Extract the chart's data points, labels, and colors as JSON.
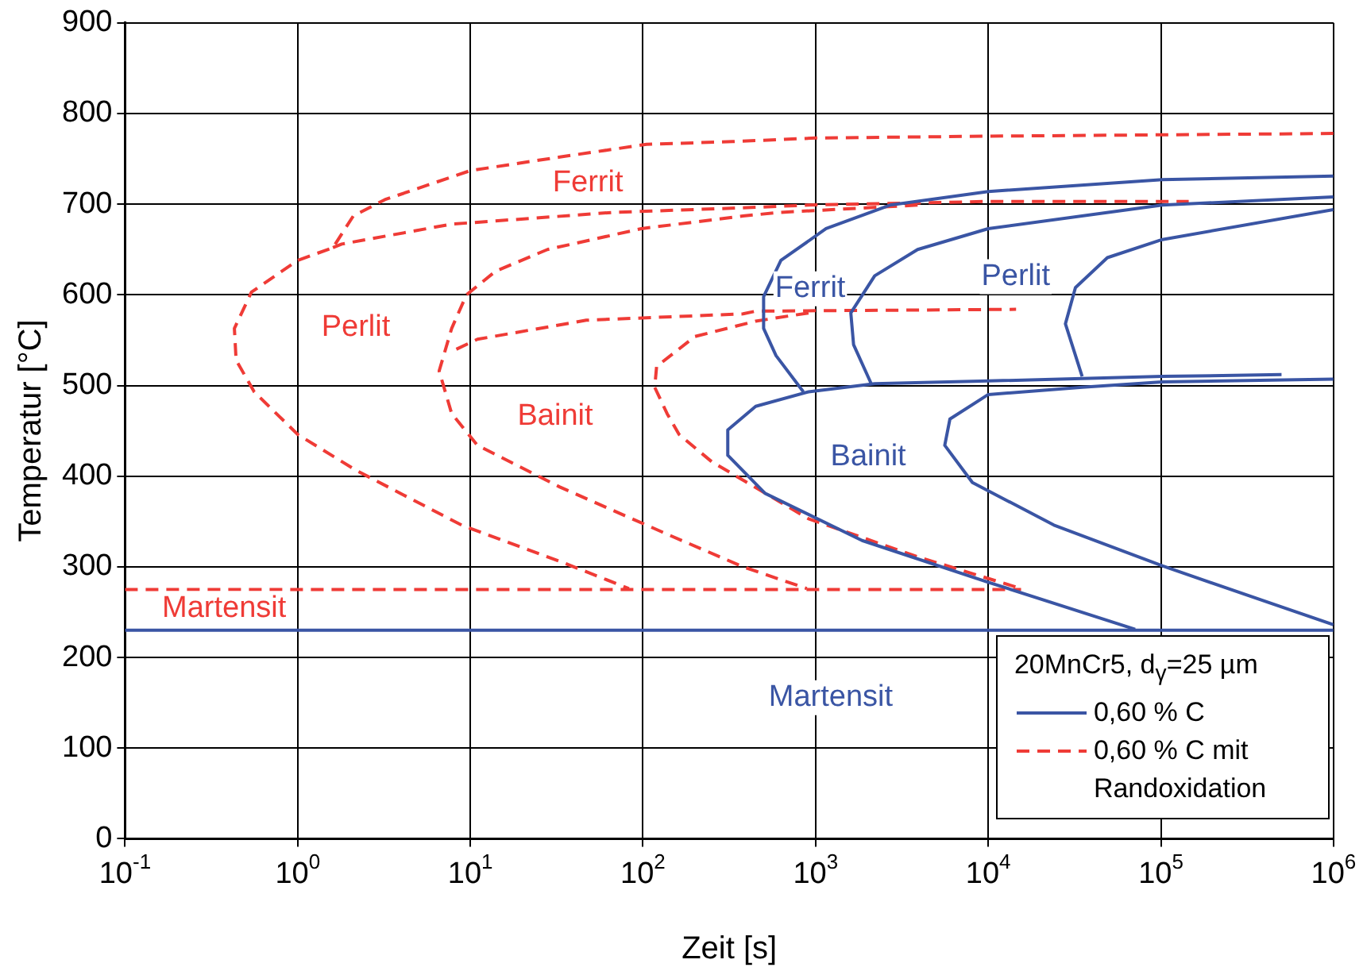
{
  "chart_data": {
    "type": "line",
    "xlabel": "Zeit [s]",
    "ylabel": "Temperatur [°C]",
    "legend_title": "20MnCr5, d$_{γ}$=25 µm",
    "legend": "bottom right",
    "grid": true,
    "log": "x",
    "xlim": [
      0.1,
      1000000
    ],
    "xticks": [
      {
        "value": 0.1,
        "label": "10$^{-1}$"
      },
      {
        "value": 1,
        "label": "10$^{0}$"
      },
      {
        "value": 10,
        "label": "10$^{1}$"
      },
      {
        "value": 100,
        "label": "10$^{2}$"
      },
      {
        "value": 1000,
        "label": "10$^{3}$"
      },
      {
        "value": 10000,
        "label": "10$^{4}$"
      },
      {
        "value": 100000,
        "label": "10$^{5}$"
      },
      {
        "value": 1000000,
        "label": "10$^{6}$"
      }
    ],
    "ylim": [
      0,
      900
    ],
    "yticks": [
      0,
      100,
      200,
      300,
      400,
      500,
      600,
      700,
      800,
      900
    ],
    "series": [
      {
        "name": "0,60 % C",
        "color": "#3a55a4",
        "line_style": "solid",
        "x": [
          1000000,
          102000,
          10000,
          2700,
          1150,
          630,
          500,
          500,
          590,
          850
        ],
        "values": [
          731,
          727,
          714,
          699,
          673,
          638,
          598,
          563,
          533,
          493
        ]
      },
      {
        "color": "#3a55a4",
        "line_style": "solid",
        "x": [
          1000000,
          102000,
          10000,
          3900,
          2200,
          1600,
          1660,
          2100
        ],
        "values": [
          708,
          699,
          673,
          650,
          621,
          580,
          545,
          502
        ]
      },
      {
        "color": "#3a55a4",
        "line_style": "solid",
        "x": [
          1000000,
          102000,
          49000,
          32000,
          28000,
          35000
        ],
        "values": [
          694,
          661,
          641,
          608,
          568,
          510
        ]
      },
      {
        "color": "#3a55a4",
        "line_style": "solid",
        "x": [
          500000,
          102000,
          10000,
          2200,
          910,
          450,
          310,
          310,
          510,
          1860,
          10000,
          71000
        ],
        "values": [
          512,
          510,
          505,
          502,
          493,
          477,
          451,
          423,
          381,
          329,
          283,
          231
        ]
      },
      {
        "color": "#3a55a4",
        "line_style": "solid",
        "x": [
          1000000,
          102000,
          35000,
          10000,
          6000,
          5600,
          8100,
          24000,
          102000,
          1000000
        ],
        "values": [
          507,
          504,
          498,
          490,
          463,
          434,
          393,
          346,
          301,
          236
        ]
      },
      {
        "color": "#3a55a4",
        "line_style": "solid",
        "x": [
          0.1,
          1000000
        ],
        "values": [
          230,
          230
        ]
      },
      {
        "name": "0,60 % C mit Randoxidation",
        "color": "#ef3b36",
        "line_style": "dashed",
        "x": [
          1000000,
          10000,
          1000,
          330,
          105,
          33,
          10,
          3.2,
          2.1,
          1.6,
          1,
          0.54,
          0.43,
          0.44,
          0.56,
          1,
          2.2,
          8.9,
          33,
          83
        ],
        "values": [
          778,
          775,
          773,
          769,
          766,
          752,
          737,
          705,
          687,
          652,
          638,
          603,
          563,
          528,
          493,
          446,
          406,
          346,
          306,
          276
        ]
      },
      {
        "color": "#ef3b36",
        "line_style": "dashed",
        "x": [
          1.6,
          1.8,
          7.8,
          68,
          380,
          910,
          10000,
          145000
        ],
        "values": [
          652,
          656,
          678,
          691,
          696,
          699,
          703,
          703
        ]
      },
      {
        "color": "#ef3b36",
        "line_style": "dashed",
        "x": [
          3900,
          630,
          380,
          98,
          28,
          14,
          9.5,
          7.8,
          6.6,
          7.8,
          11,
          33,
          138,
          380,
          890
        ],
        "values": [
          699,
          691,
          687,
          673,
          650,
          626,
          600,
          563,
          516,
          469,
          434,
          388,
          336,
          300,
          276
        ]
      },
      {
        "color": "#ef3b36",
        "line_style": "dashed",
        "x": [
          8.3,
          11,
          47,
          380,
          450,
          14500
        ],
        "values": [
          540,
          551,
          572,
          579,
          582,
          584
        ]
      },
      {
        "color": "#ef3b36",
        "line_style": "dashed",
        "x": [
          910,
          450,
          200,
          120,
          117,
          138,
          162,
          250,
          910,
          3900,
          15500
        ],
        "values": [
          580,
          571,
          554,
          521,
          498,
          469,
          446,
          416,
          353,
          311,
          276
        ]
      },
      {
        "color": "#ef3b36",
        "line_style": "dashed",
        "x": [
          0.1,
          15500
        ],
        "values": [
          275,
          275
        ]
      }
    ],
    "annotations": [
      "Ferrit",
      "Perlit",
      "Bainit",
      "Martensit",
      "Ferrit",
      "Perlit",
      "Bainit",
      "Martensit"
    ]
  }
}
